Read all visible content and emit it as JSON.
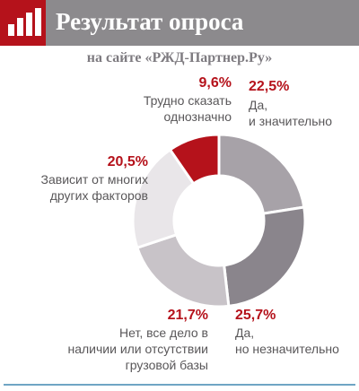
{
  "header": {
    "title": "Результат опроса",
    "subtitle": "на сайте «РЖД-Партнер.Ру»",
    "accent_color": "#b5121b",
    "band_color": "#8c8a8d",
    "logo_icon": "bar-chart-icon"
  },
  "chart_data": {
    "type": "pie",
    "style": "donut",
    "title": "Результат опроса",
    "subtitle": "на сайте «РЖД-Партнер.Ру»",
    "slices": [
      {
        "label_lines": [
          "Да,",
          "и значительно"
        ],
        "value": 22.5,
        "value_label": "22,5%",
        "color": "#a7a2a8"
      },
      {
        "label_lines": [
          "Да,",
          "но незначительно"
        ],
        "value": 25.7,
        "value_label": "25,7%",
        "color": "#8a858c"
      },
      {
        "label_lines": [
          "Нет, все дело в",
          "наличии или отсутствии",
          "грузовой базы"
        ],
        "value": 21.7,
        "value_label": "21,7%",
        "color": "#c8c3c8"
      },
      {
        "label_lines": [
          "Зависит от многих",
          "других факторов"
        ],
        "value": 20.5,
        "value_label": "20,5%",
        "color": "#e9e6e9"
      },
      {
        "label_lines": [
          "Трудно сказать",
          "однозначно"
        ],
        "value": 9.6,
        "value_label": "9,6%",
        "color": "#b5121b"
      }
    ]
  }
}
